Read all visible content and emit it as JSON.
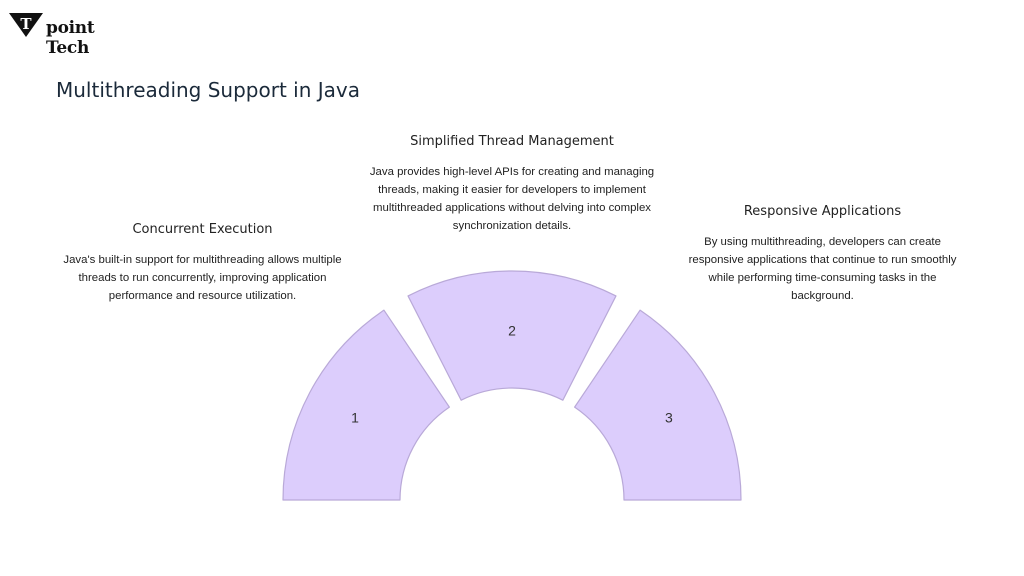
{
  "logo": {
    "text": "Tpoint Tech"
  },
  "title": "Multithreading Support in Java",
  "items": [
    {
      "number": "1",
      "heading": "Concurrent Execution",
      "body": "Java's built-in support for multithreading allows multiple threads to run concurrently, improving application performance and resource utilization."
    },
    {
      "number": "2",
      "heading": "Simplified Thread Management",
      "body": "Java provides high-level APIs for creating and managing threads, making it easier for developers to implement multithreaded applications without delving into complex synchronization details."
    },
    {
      "number": "3",
      "heading": "Responsive Applications",
      "body": "By using multithreading, developers can create responsive applications that continue to run smoothly while performing time-consuming tasks in the background."
    }
  ],
  "colors": {
    "segment_fill": "#dccdfc",
    "segment_stroke": "#b9a9d8"
  }
}
